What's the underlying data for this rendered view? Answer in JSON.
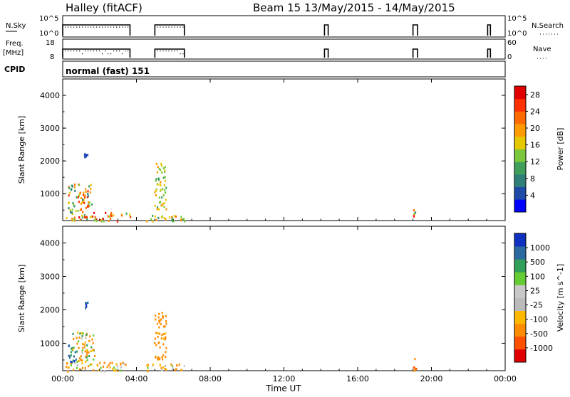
{
  "header": {
    "station": "Halley (fitACF)",
    "beam_dates": "Beam 15 13/May/2015 - 14/May/2015"
  },
  "summary_panels": {
    "nsky_label": "N.Sky",
    "nsky_ticks": [
      "10^5",
      "10^0"
    ],
    "nsearch_label": "N.Search",
    "nsearch_ticks": [
      "10^5",
      "10^0"
    ],
    "freq_label_1": "Freq.",
    "freq_label_2": "[MHz]",
    "freq_ticks": [
      "18",
      "8"
    ],
    "nave_label": "Nave",
    "nave_ticks": [
      "60",
      "0"
    ],
    "cpid_label": "CPID",
    "cpid_value": "normal (fast) 151",
    "activity_windows_hours": [
      [
        0.0,
        3.65
      ],
      [
        5.0,
        6.6
      ],
      [
        14.2,
        14.4
      ],
      [
        19.0,
        19.25
      ],
      [
        23.05,
        23.2
      ]
    ]
  },
  "colors": {
    "power_scale": [
      "#0000ff",
      "#1e4ba8",
      "#2f7f78",
      "#3f9f5a",
      "#7cc83c",
      "#e6c800",
      "#ff9a00",
      "#ff6a00",
      "#ff3000",
      "#e00000"
    ],
    "velocity_scale": [
      "#e00000",
      "#ff5000",
      "#ff8c00",
      "#ffb800",
      "#bbbbbb",
      "#c8c8c8",
      "#66cc33",
      "#2f9f5a",
      "#2a6aa0",
      "#1030c0"
    ]
  },
  "chart_data": [
    {
      "type": "heatmap",
      "title": "Power",
      "xlabel": "Time UT",
      "ylabel": "Slant Range [km]",
      "x_ticks": [
        "00:00",
        "04:00",
        "08:00",
        "12:00",
        "16:00",
        "20:00",
        "00:00"
      ],
      "xlim_hours": [
        0,
        24
      ],
      "ylim_km": [
        180,
        4500
      ],
      "y_ticks": [
        1000,
        2000,
        3000,
        4000
      ],
      "colorbar_label": "Power [dB]",
      "colorbar_ticks": [
        4,
        8,
        12,
        16,
        20,
        24,
        28
      ],
      "colorbar_range": [
        0,
        30
      ],
      "echo_regions": [
        {
          "t0": 0.15,
          "t1": 3.65,
          "r0": 180,
          "r1": 450,
          "value_range": [
            10,
            30
          ]
        },
        {
          "t0": 0.25,
          "t1": 1.6,
          "r0": 450,
          "r1": 1350,
          "value_range": [
            6,
            26
          ]
        },
        {
          "t0": 1.15,
          "t1": 1.35,
          "r0": 2050,
          "r1": 2250,
          "value_range": [
            2,
            6
          ]
        },
        {
          "t0": 4.95,
          "t1": 5.6,
          "r0": 500,
          "r1": 1950,
          "value_range": [
            10,
            20
          ]
        },
        {
          "t0": 4.5,
          "t1": 6.6,
          "r0": 180,
          "r1": 400,
          "value_range": [
            8,
            22
          ]
        },
        {
          "t0": 19.0,
          "t1": 19.15,
          "r0": 200,
          "r1": 650,
          "value_range": [
            4,
            30
          ]
        }
      ]
    },
    {
      "type": "heatmap",
      "title": "Velocity",
      "xlabel": "Time UT",
      "ylabel": "Slant Range [km]",
      "x_ticks": [
        "00:00",
        "04:00",
        "08:00",
        "12:00",
        "16:00",
        "20:00",
        "00:00"
      ],
      "xlim_hours": [
        0,
        24
      ],
      "ylim_km": [
        180,
        4500
      ],
      "y_ticks": [
        1000,
        2000,
        3000,
        4000
      ],
      "colorbar_label": "Velocity [m s^-1]",
      "colorbar_ticks": [
        "1000",
        "500",
        "100",
        "25",
        "-25",
        "-100",
        "-500",
        "-1000"
      ],
      "echo_regions": [
        {
          "t0": 0.15,
          "t1": 3.65,
          "r0": 180,
          "r1": 450,
          "value_range": [
            -300,
            100
          ]
        },
        {
          "t0": 0.2,
          "t1": 0.7,
          "r0": 450,
          "r1": 1050,
          "value_range": [
            300,
            1200
          ]
        },
        {
          "t0": 0.5,
          "t1": 1.7,
          "r0": 450,
          "r1": 1350,
          "value_range": [
            -400,
            200
          ]
        },
        {
          "t0": 1.15,
          "t1": 1.35,
          "r0": 2050,
          "r1": 2250,
          "value_range": [
            500,
            1200
          ]
        },
        {
          "t0": 4.95,
          "t1": 5.6,
          "r0": 500,
          "r1": 1950,
          "value_range": [
            -500,
            -50
          ]
        },
        {
          "t0": 4.5,
          "t1": 6.6,
          "r0": 180,
          "r1": 400,
          "value_range": [
            -200,
            50
          ]
        },
        {
          "t0": 19.0,
          "t1": 19.15,
          "r0": 200,
          "r1": 650,
          "value_range": [
            -600,
            -200
          ]
        }
      ]
    }
  ]
}
